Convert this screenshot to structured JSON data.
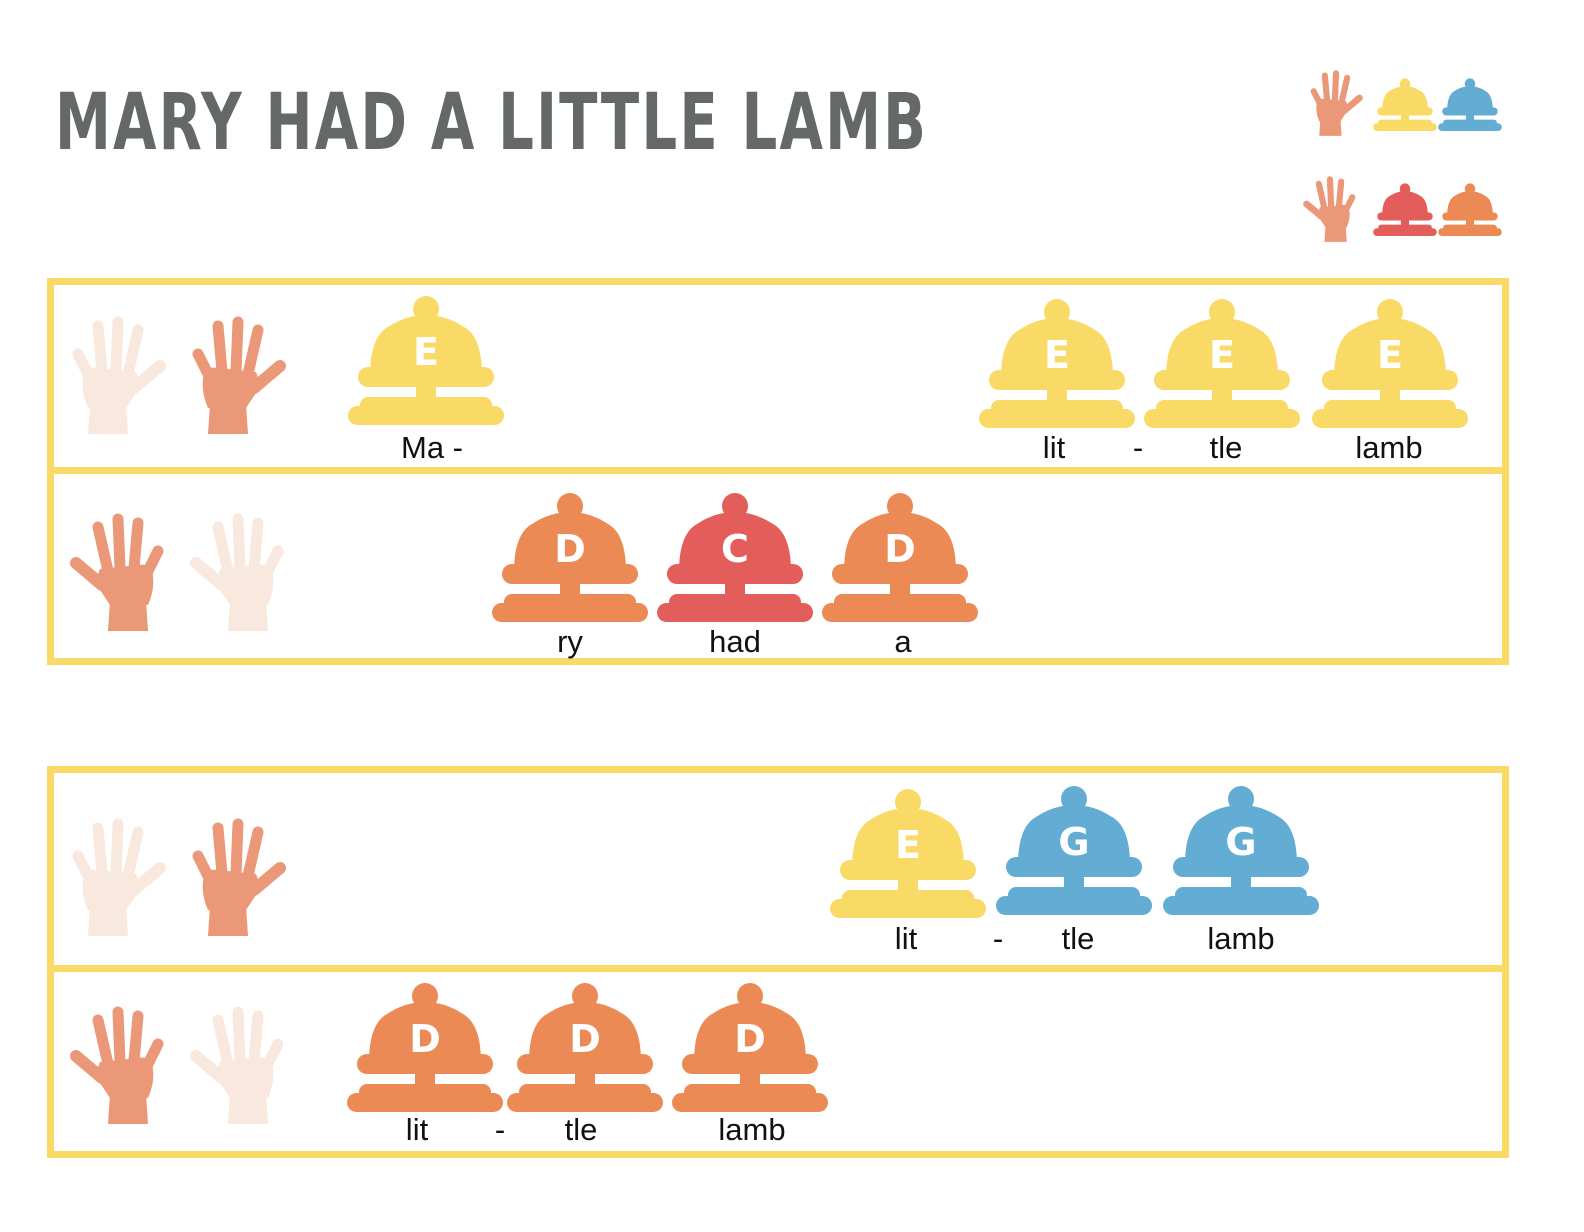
{
  "title": "MARY HAD A LITTLE LAMB",
  "colors": {
    "E": "#f9da66",
    "D": "#ec8a55",
    "C": "#e35e5b",
    "G": "#63acd4",
    "hand_active": "#ea9878",
    "hand_inactive": "#f8e8de",
    "frame": "#f9da67"
  },
  "legend": [
    {
      "hand": "right",
      "bells": [
        "E",
        "G"
      ]
    },
    {
      "hand": "left",
      "bells": [
        "C",
        "D"
      ]
    }
  ],
  "panels": [
    {
      "rows": [
        {
          "hand": "right",
          "bells": [
            "E",
            "E",
            "E",
            "E"
          ],
          "lyrics": [
            "Ma -",
            "lit",
            "-",
            "tle",
            "lamb"
          ]
        },
        {
          "hand": "left",
          "bells": [
            "D",
            "C",
            "D"
          ],
          "lyrics": [
            "ry",
            "had",
            "a"
          ]
        }
      ]
    },
    {
      "rows": [
        {
          "hand": "right",
          "bells": [
            "E",
            "G",
            "G"
          ],
          "lyrics": [
            "lit",
            "-",
            "tle",
            "lamb"
          ]
        },
        {
          "hand": "left",
          "bells": [
            "D",
            "D",
            "D"
          ],
          "lyrics": [
            "lit",
            "-",
            "tle",
            "lamb"
          ]
        }
      ]
    }
  ]
}
